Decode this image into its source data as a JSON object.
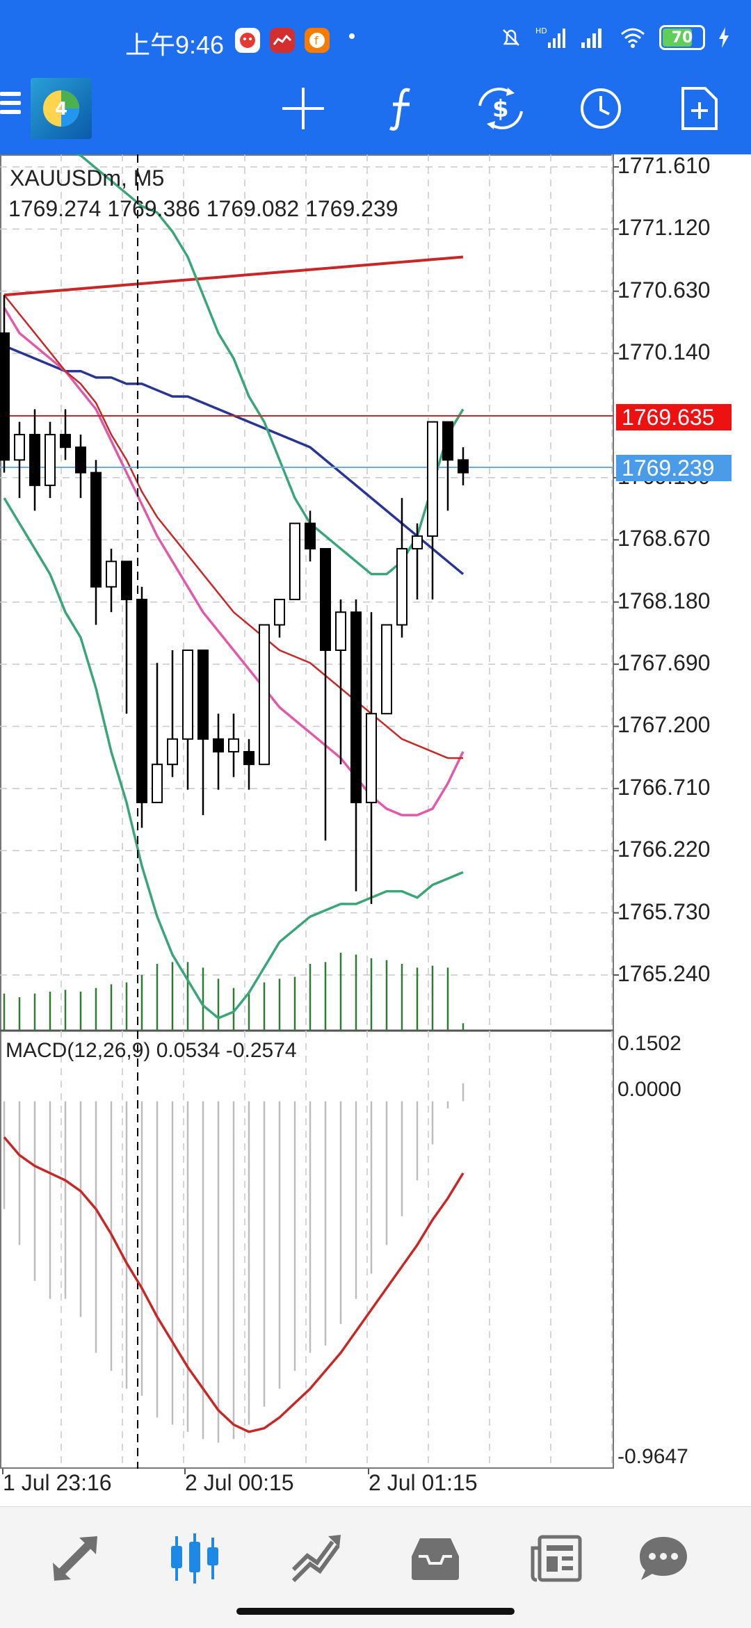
{
  "status_bar": {
    "time": "上午9:46",
    "apps": [
      "app-1",
      "app-2",
      "app-3"
    ],
    "signal_label_1": "HD",
    "battery": "70"
  },
  "toolbar": {
    "icons": [
      "menu-icon",
      "metatrader-logo",
      "crosshair-icon",
      "function-icon",
      "trade-icon",
      "clock-icon",
      "new-document-icon"
    ]
  },
  "chart": {
    "symbol": "XAUUSDm, M5",
    "ohlc": "1769.274 1769.386 1769.082 1769.239",
    "price_labels": [
      "1771.610",
      "1771.120",
      "1770.630",
      "1770.140",
      "1769.160",
      "1768.670",
      "1768.180",
      "1767.690",
      "1767.200",
      "1766.710",
      "1766.220",
      "1765.730",
      "1765.240"
    ],
    "red_tag": "1769.635",
    "blue_tag": "1769.239",
    "macd_label": "MACD(12,26,9) 0.0534 -0.2574",
    "macd_scale": [
      "0.1502",
      "0.0000",
      "-0.9647"
    ],
    "time_labels": [
      "1 Jul 23:16",
      "2 Jul 00:15",
      "2 Jul 01:15"
    ],
    "colors": {
      "bull_border": "#000000",
      "bear_fill": "#000000",
      "ma_red": "#c62828",
      "ma_blue": "#283593",
      "ma_pink": "#e05aa8",
      "bollinger": "#3aa678",
      "volume": "#2e7d32",
      "tag_red": "#ee1111",
      "tag_blue": "#4a9be8"
    }
  },
  "chart_data": {
    "type": "candlestick",
    "candles": [
      {
        "o": 1770.3,
        "h": 1770.6,
        "l": 1769.2,
        "c": 1769.3
      },
      {
        "o": 1769.3,
        "h": 1769.6,
        "l": 1769.0,
        "c": 1769.5
      },
      {
        "o": 1769.5,
        "h": 1769.7,
        "l": 1768.9,
        "c": 1769.1
      },
      {
        "o": 1769.1,
        "h": 1769.6,
        "l": 1769.0,
        "c": 1769.5
      },
      {
        "o": 1769.5,
        "h": 1769.7,
        "l": 1769.3,
        "c": 1769.4
      },
      {
        "o": 1769.4,
        "h": 1769.5,
        "l": 1769.0,
        "c": 1769.2
      },
      {
        "o": 1769.2,
        "h": 1769.3,
        "l": 1768.0,
        "c": 1768.3
      },
      {
        "o": 1768.3,
        "h": 1768.6,
        "l": 1768.1,
        "c": 1768.5
      },
      {
        "o": 1768.5,
        "h": 1768.5,
        "l": 1767.3,
        "c": 1768.2
      },
      {
        "o": 1768.2,
        "h": 1768.3,
        "l": 1766.4,
        "c": 1766.6
      },
      {
        "o": 1766.6,
        "h": 1767.7,
        "l": 1766.6,
        "c": 1766.9
      },
      {
        "o": 1766.9,
        "h": 1767.8,
        "l": 1766.8,
        "c": 1767.1
      },
      {
        "o": 1767.1,
        "h": 1767.8,
        "l": 1766.7,
        "c": 1767.8
      },
      {
        "o": 1767.8,
        "h": 1767.8,
        "l": 1766.5,
        "c": 1767.1
      },
      {
        "o": 1767.1,
        "h": 1767.3,
        "l": 1766.7,
        "c": 1767.0
      },
      {
        "o": 1767.0,
        "h": 1767.3,
        "l": 1766.8,
        "c": 1767.1
      },
      {
        "o": 1767.0,
        "h": 1767.1,
        "l": 1766.7,
        "c": 1766.9
      },
      {
        "o": 1766.9,
        "h": 1768.0,
        "l": 1766.9,
        "c": 1768.0
      },
      {
        "o": 1768.0,
        "h": 1768.2,
        "l": 1767.9,
        "c": 1768.2
      },
      {
        "o": 1768.2,
        "h": 1768.8,
        "l": 1768.2,
        "c": 1768.8
      },
      {
        "o": 1768.8,
        "h": 1768.9,
        "l": 1768.5,
        "c": 1768.6
      },
      {
        "o": 1768.6,
        "h": 1768.6,
        "l": 1766.3,
        "c": 1767.8
      },
      {
        "o": 1767.8,
        "h": 1768.2,
        "l": 1766.9,
        "c": 1768.1
      },
      {
        "o": 1768.1,
        "h": 1768.2,
        "l": 1765.9,
        "c": 1766.6
      },
      {
        "o": 1766.6,
        "h": 1768.1,
        "l": 1765.8,
        "c": 1767.3
      },
      {
        "o": 1767.3,
        "h": 1768.0,
        "l": 1767.3,
        "c": 1768.0
      },
      {
        "o": 1768.0,
        "h": 1769.0,
        "l": 1767.9,
        "c": 1768.6
      },
      {
        "o": 1768.6,
        "h": 1768.8,
        "l": 1768.2,
        "c": 1768.7
      },
      {
        "o": 1768.7,
        "h": 1769.6,
        "l": 1768.2,
        "c": 1769.6
      },
      {
        "o": 1769.6,
        "h": 1769.6,
        "l": 1768.9,
        "c": 1769.3
      },
      {
        "o": 1769.3,
        "h": 1769.4,
        "l": 1769.1,
        "c": 1769.2
      }
    ],
    "volume": [
      40,
      36,
      40,
      42,
      44,
      42,
      46,
      50,
      52,
      60,
      72,
      74,
      74,
      68,
      56,
      46,
      42,
      52,
      56,
      58,
      72,
      74,
      84,
      82,
      78,
      76,
      72,
      68,
      70,
      68,
      8
    ],
    "price_range": [
      1765.0,
      1771.8
    ],
    "ma_red_thin": [
      1770.6,
      1770.45,
      1770.3,
      1770.15,
      1770.0,
      1769.9,
      1769.75,
      1769.5,
      1769.3,
      1769.05,
      1768.85,
      1768.7,
      1768.55,
      1768.4,
      1768.25,
      1768.1,
      1768.0,
      1767.9,
      1767.8,
      1767.75,
      1767.7,
      1767.6,
      1767.5,
      1767.4,
      1767.3,
      1767.2,
      1767.1,
      1767.05,
      1767.0,
      1766.95,
      1766.95
    ],
    "ma_pink": [
      1770.5,
      1770.3,
      1770.2,
      1770.1,
      1770.0,
      1769.85,
      1769.7,
      1769.45,
      1769.2,
      1768.95,
      1768.7,
      1768.5,
      1768.3,
      1768.1,
      1767.95,
      1767.8,
      1767.65,
      1767.5,
      1767.35,
      1767.25,
      1767.15,
      1767.05,
      1766.95,
      1766.8,
      1766.65,
      1766.55,
      1766.5,
      1766.5,
      1766.55,
      1766.75,
      1767.0
    ],
    "bollinger_upper": [
      1772.0,
      1771.9,
      1771.85,
      1771.8,
      1771.75,
      1771.7,
      1771.6,
      1771.5,
      1771.4,
      1771.3,
      1771.25,
      1771.1,
      1770.9,
      1770.6,
      1770.3,
      1770.1,
      1769.8,
      1769.6,
      1769.3,
      1769.0,
      1768.8,
      1768.7,
      1768.6,
      1768.5,
      1768.4,
      1768.4,
      1768.5,
      1768.7,
      1769.1,
      1769.5,
      1769.7
    ],
    "bollinger_lower": [
      1769.0,
      1768.8,
      1768.6,
      1768.4,
      1768.1,
      1767.9,
      1767.5,
      1767.0,
      1766.6,
      1766.1,
      1765.7,
      1765.4,
      1765.2,
      1765.0,
      1764.9,
      1764.95,
      1765.1,
      1765.3,
      1765.5,
      1765.6,
      1765.7,
      1765.75,
      1765.8,
      1765.8,
      1765.85,
      1765.9,
      1765.9,
      1765.85,
      1765.95,
      1766.0,
      1766.05
    ],
    "ma_blue": [
      1770.2,
      1770.15,
      1770.1,
      1770.05,
      1770.0,
      1770.0,
      1769.95,
      1769.95,
      1769.9,
      1769.9,
      1769.85,
      1769.8,
      1769.8,
      1769.75,
      1769.7,
      1769.65,
      1769.6,
      1769.55,
      1769.5,
      1769.45,
      1769.4,
      1769.3,
      1769.2,
      1769.1,
      1769.0,
      1768.9,
      1768.8,
      1768.7,
      1768.6,
      1768.5,
      1768.4
    ],
    "ma_red_flat": [
      1770.6,
      1770.61,
      1770.62,
      1770.63,
      1770.64,
      1770.65,
      1770.66,
      1770.67,
      1770.68,
      1770.69,
      1770.7,
      1770.71,
      1770.72,
      1770.73,
      1770.74,
      1770.75,
      1770.76,
      1770.77,
      1770.78,
      1770.79,
      1770.8,
      1770.81,
      1770.82,
      1770.83,
      1770.84,
      1770.85,
      1770.86,
      1770.87,
      1770.88,
      1770.89,
      1770.9
    ],
    "macd_hist": [
      -0.3,
      -0.4,
      -0.5,
      -0.55,
      -0.55,
      -0.6,
      -0.7,
      -0.75,
      -0.8,
      -0.82,
      -0.88,
      -0.9,
      -0.92,
      -0.94,
      -0.95,
      -0.94,
      -0.9,
      -0.85,
      -0.8,
      -0.75,
      -0.7,
      -0.68,
      -0.62,
      -0.55,
      -0.48,
      -0.4,
      -0.32,
      -0.22,
      -0.12,
      -0.02,
      0.05
    ],
    "macd_signal": [
      -0.1,
      -0.15,
      -0.18,
      -0.2,
      -0.22,
      -0.25,
      -0.3,
      -0.37,
      -0.45,
      -0.52,
      -0.6,
      -0.67,
      -0.74,
      -0.8,
      -0.86,
      -0.9,
      -0.92,
      -0.91,
      -0.88,
      -0.84,
      -0.8,
      -0.75,
      -0.7,
      -0.64,
      -0.58,
      -0.52,
      -0.46,
      -0.4,
      -0.33,
      -0.27,
      -0.2
    ],
    "macd_range": [
      -0.9647,
      0.1502
    ]
  },
  "bottom_nav": {
    "items": [
      "quotes-icon",
      "chart-icon",
      "trade-icon",
      "history-icon",
      "news-icon",
      "chat-icon"
    ],
    "active_index": 1,
    "active_color": "#1e88e5",
    "inactive_color": "#707070"
  }
}
